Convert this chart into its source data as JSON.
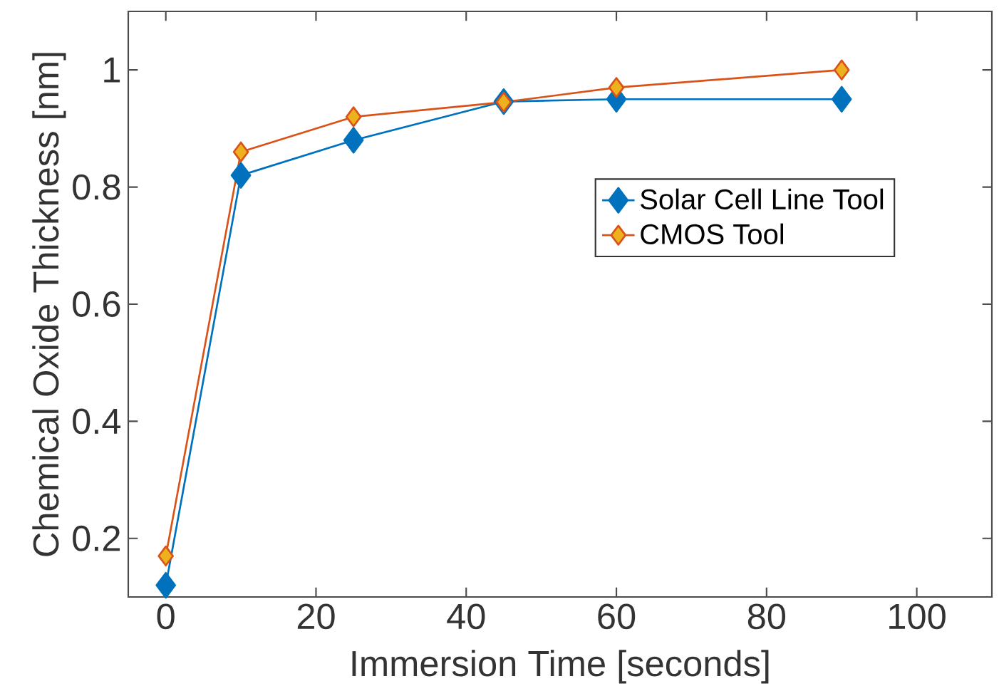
{
  "chart_data": {
    "type": "line",
    "xlabel": "Immersion Time [seconds]",
    "ylabel": "Chemical Oxide Thickness [nm]",
    "x": [
      0,
      10,
      25,
      45,
      60,
      90
    ],
    "series": [
      {
        "name": "Solar Cell Line Tool",
        "color": "#0072bd",
        "values": [
          0.12,
          0.82,
          0.88,
          0.946,
          0.95,
          0.95
        ]
      },
      {
        "name": "CMOS Tool",
        "color": "#d95319",
        "values": [
          0.17,
          0.86,
          0.92,
          0.945,
          0.97,
          1.0
        ]
      }
    ],
    "xlim": [
      -5,
      110
    ],
    "ylim": [
      0.1,
      1.1
    ],
    "xticks": [
      0,
      20,
      40,
      60,
      80,
      100
    ],
    "yticks": [
      0.2,
      0.4,
      0.6,
      0.8,
      1
    ],
    "grid": false,
    "legend": "top right",
    "marker": "diamond",
    "line_style": "solid"
  }
}
